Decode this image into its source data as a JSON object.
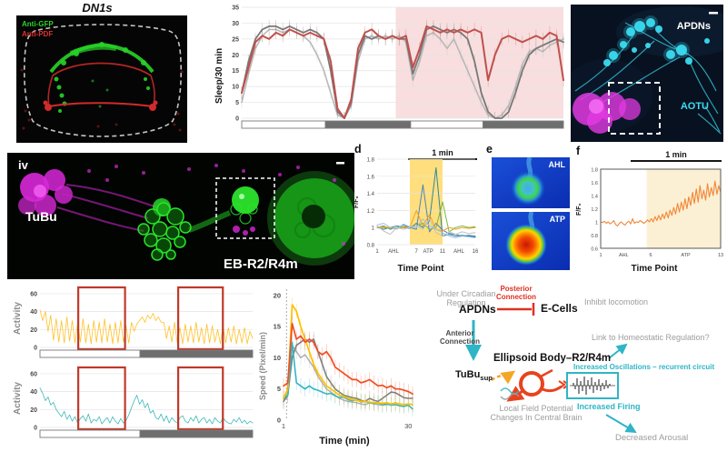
{
  "figure": {
    "background": "#ffffff"
  },
  "panels": {
    "dn1s": {
      "title": "DN1s",
      "label_green": "Anti-GFP",
      "label_red": "Anti-PDF",
      "colors": {
        "green": "#28d428",
        "red": "#d22a2a",
        "outline": "#cfcfcf",
        "bg": "#050505"
      }
    },
    "apdns_img": {
      "label_top": "APDNs",
      "label_bottom": "AOTU",
      "colors": {
        "cyan": "#3adcf2",
        "magenta": "#e23ae2",
        "bg": "#071120"
      }
    },
    "tubu_img": {
      "letter": "iv",
      "label_left": "TuBu",
      "label_bottom": "EB-R2/R4m",
      "colors": {
        "green": "#2be42b",
        "magenta": "#d928d9",
        "bg": "#020402"
      }
    },
    "panel_d": {
      "letter": "d",
      "scalebar": "1 min"
    },
    "panel_e": {
      "letter": "e",
      "img1_label": "AHL",
      "img2_label": "ATP"
    },
    "panel_f": {
      "letter": "f",
      "scalebar": "1 min"
    },
    "diagram": {
      "under_circadian": "Under Circadian Regulation",
      "apdns": "APDNs",
      "posterior": "Posterior Connection",
      "e_cells": "E-Cells",
      "inhibit": "Inhibit locomotion",
      "anterior": "Anterior Connection",
      "ellipsoid": "Ellipsoid Body–R2/R4m",
      "link": "Link to Homeostatic Regulation?",
      "tubu": "TuBu",
      "tubu_sub": "sup",
      "oscillations": "Increased Oscillations – recurrent circuit",
      "firing": "Increased Firing",
      "lfp1": "Local Field Potential",
      "lfp2": "Changes In Central Brain",
      "arousal": "Decreased Arousal",
      "accent_teal": "#2fb5c5",
      "accent_red": "#e03020",
      "accent_orange": "#f5a623"
    }
  },
  "chart_data": [
    {
      "id": "sleep",
      "type": "line",
      "title": "",
      "xlabel": "",
      "ylabel": "Sleep/30 min",
      "ylim": [
        0,
        35
      ],
      "yticks": [
        0,
        5,
        10,
        15,
        20,
        25,
        30,
        35
      ],
      "xlim": [
        0,
        47
      ],
      "grid": true,
      "tickfs": 7,
      "tickbold": true,
      "err": 2,
      "shaded": [
        {
          "x0": 22.5,
          "x1": 47,
          "color": "#f8dede",
          "opacity": 1
        }
      ],
      "pad": [
        24,
        6,
        4,
        14
      ],
      "photoperiod": [
        {
          "shade": "light",
          "frac": 0.26
        },
        {
          "shade": "dark",
          "frac": 0.265
        },
        {
          "shade": "light",
          "frac": 0.225
        },
        {
          "shade": "dark",
          "frac": 0.25
        }
      ],
      "series": [
        {
          "name": "control-light-gray",
          "color": "#b8b8b8",
          "lw": 1.6,
          "y": [
            5,
            14,
            22,
            26,
            28,
            28,
            27,
            28,
            27,
            26,
            24,
            20,
            15,
            8,
            1,
            0,
            4,
            18,
            25,
            26,
            25,
            26,
            25,
            26,
            24,
            12,
            18,
            26,
            27,
            25,
            22,
            25,
            20,
            15,
            10,
            5,
            1,
            0,
            1,
            4,
            10,
            17,
            21,
            22,
            21,
            23,
            24,
            25
          ]
        },
        {
          "name": "control-dark-gray",
          "color": "#787878",
          "lw": 1.8,
          "y": [
            8,
            18,
            25,
            28,
            29,
            29,
            28,
            29,
            28,
            27,
            28,
            27,
            25,
            15,
            2,
            0,
            5,
            20,
            26,
            25,
            26,
            25,
            26,
            25,
            25,
            14,
            20,
            28,
            29,
            28,
            27,
            28,
            27,
            25,
            18,
            8,
            2,
            0,
            0,
            2,
            8,
            15,
            20,
            22,
            23,
            24,
            25,
            24
          ]
        },
        {
          "name": "experimental-red",
          "color": "#c0504d",
          "lw": 2,
          "y": [
            8,
            16,
            24,
            26,
            25,
            27,
            26,
            28,
            27,
            26,
            27,
            26,
            25,
            18,
            3,
            0,
            6,
            22,
            27,
            28,
            26,
            25,
            26,
            25,
            26,
            16,
            22,
            29,
            28,
            27,
            28,
            27,
            28,
            27,
            28,
            27,
            12,
            20,
            25,
            26,
            25,
            24,
            25,
            26,
            25,
            27,
            26,
            12
          ]
        }
      ]
    },
    {
      "id": "dff_multi",
      "type": "line",
      "xlabel": "Time Point",
      "ylabel": "F/F₀",
      "ylim": [
        0.8,
        1.8
      ],
      "yticks": [
        0.8,
        1,
        1.2,
        1.4,
        1.6,
        1.8
      ],
      "xlim": [
        1,
        16
      ],
      "grid": true,
      "tickfs": 6,
      "lw": 1,
      "shaded": [
        {
          "x0": 6,
          "x1": 11,
          "color": "#ffd966",
          "opacity": 0.85
        }
      ],
      "pad": [
        15,
        4,
        3,
        14
      ],
      "xticklabels": [
        {
          "pos": 1,
          "t": "1"
        },
        {
          "pos": 3.5,
          "t": "AHL"
        },
        {
          "pos": 7,
          "t": "7"
        },
        {
          "pos": 8.8,
          "t": "ATP"
        },
        {
          "pos": 11,
          "t": "11"
        },
        {
          "pos": 13.5,
          "t": "AHL"
        },
        {
          "pos": 16,
          "t": "16"
        }
      ],
      "series": [
        {
          "name": "cell-1",
          "color": "#4f81bd",
          "y": [
            1.0,
            1.02,
            0.98,
            1.0,
            1.03,
            1.0,
            0.98,
            1.5,
            0.95,
            1.05,
            0.97,
            0.93,
            0.92,
            0.9,
            0.91,
            0.9
          ]
        },
        {
          "name": "cell-2",
          "color": "#31859c",
          "y": [
            1.0,
            0.98,
            1.0,
            1.02,
            1.0,
            0.99,
            1.05,
            1.0,
            1.08,
            1.7,
            0.9,
            0.92,
            0.9,
            0.91,
            0.9,
            0.89
          ]
        },
        {
          "name": "cell-3",
          "color": "#77b843",
          "y": [
            1.0,
            1.0,
            0.99,
            1.0,
            1.01,
            1.0,
            1.02,
            1.05,
            0.98,
            1.0,
            1.3,
            0.95,
            1.0,
            1.02,
            1.0,
            1.01
          ]
        },
        {
          "name": "cell-4",
          "color": "#f7a11a",
          "y": [
            1.0,
            1.01,
            1.0,
            0.99,
            1.0,
            1.0,
            1.2,
            1.02,
            1.15,
            0.98,
            0.96,
            1.0,
            0.98,
            1.0,
            0.99,
            1.0
          ]
        },
        {
          "name": "cell-5",
          "color": "#c0c0c0",
          "y": [
            1.02,
            0.96,
            0.92,
            1.0,
            0.98,
            1.0,
            1.02,
            0.98,
            1.1,
            0.94,
            0.9,
            0.95,
            0.92,
            0.95,
            0.93,
            0.94
          ]
        },
        {
          "name": "cell-6",
          "color": "#9dc3e6",
          "y": [
            1.03,
            1.05,
            1.0,
            0.98,
            1.04,
            1.01,
            1.0,
            1.1,
            1.02,
            0.98,
            0.94,
            0.9,
            0.88,
            0.9,
            0.89,
            0.88
          ]
        }
      ]
    },
    {
      "id": "dff_single",
      "type": "line",
      "xlabel": "Time Point",
      "ylabel": "F/F₀",
      "ylim": [
        0.6,
        1.8
      ],
      "yticks": [
        0.6,
        0.8,
        1,
        1.2,
        1.4,
        1.6,
        1.8
      ],
      "xlim": [
        1,
        13
      ],
      "grid": false,
      "boxed": true,
      "tickfs": 5.5,
      "shaded": [
        {
          "x0": 5.6,
          "x1": 13,
          "color": "#fcf0d4",
          "opacity": 1
        }
      ],
      "pad": [
        17,
        3,
        3,
        16
      ],
      "xticklabels": [
        {
          "pos": 1,
          "t": "1"
        },
        {
          "pos": 3.3,
          "t": "AHL"
        },
        {
          "pos": 6,
          "t": "6"
        },
        {
          "pos": 9.5,
          "t": "ATP"
        },
        {
          "pos": 13,
          "t": "13"
        }
      ],
      "series": [
        {
          "name": "gcamp-trace",
          "color": "#f0883a",
          "lw": 1.1,
          "y": [
            1.0,
            0.99,
            1.01,
            0.98,
            1.0,
            0.97,
            0.99,
            1.02,
            0.96,
            0.94,
            0.98,
            1.0,
            0.97,
            0.95,
            0.99,
            1.01,
            0.97,
            1.05,
            0.98,
            1.0,
            0.99,
            1.02,
            1.0,
            0.98,
            1.0,
            1.03,
            1.0,
            1.05,
            1.0,
            1.08,
            1.02,
            1.1,
            1.03,
            1.12,
            1.05,
            1.15,
            1.06,
            1.18,
            1.1,
            1.22,
            1.12,
            1.28,
            1.15,
            1.3,
            1.18,
            1.35,
            1.2,
            1.38,
            1.25,
            1.45,
            1.28,
            1.5,
            1.3,
            1.55,
            1.35,
            1.48,
            1.33,
            1.58,
            1.38,
            1.52,
            1.4,
            1.62,
            1.42,
            1.55,
            1.45
          ]
        }
      ]
    },
    {
      "id": "activity_top",
      "type": "line",
      "ylabel": "Activity",
      "ylim": [
        0,
        65
      ],
      "yticks": [
        0,
        20,
        40,
        60
      ],
      "xlim": [
        0,
        79
      ],
      "grid": true,
      "tickfs": 7,
      "tickbold": true,
      "pad": [
        20,
        6,
        6,
        4
      ],
      "photoperiod": [
        {
          "shade": "light",
          "frac": 0.47
        },
        {
          "shade": "dark",
          "frac": 0.53
        }
      ],
      "overlay_rects": [
        {
          "x0f": 0.18,
          "x1f": 0.4
        },
        {
          "x0f": 0.65,
          "x1f": 0.86
        }
      ],
      "series": [
        {
          "name": "fly-activity-orange",
          "color": "#ffc028",
          "lw": 0.8,
          "y": [
            42,
            30,
            40,
            18,
            36,
            8,
            32,
            6,
            30,
            5,
            34,
            7,
            30,
            5,
            28,
            6,
            32,
            5,
            26,
            4,
            30,
            6,
            28,
            5,
            32,
            6,
            26,
            4,
            28,
            5,
            30,
            6,
            24,
            5,
            28,
            18,
            26,
            30,
            34,
            28,
            36,
            32,
            38,
            30,
            34,
            28,
            28,
            10,
            24,
            6,
            28,
            5,
            22,
            4,
            26,
            6,
            24,
            5,
            28,
            6,
            22,
            4,
            26,
            5,
            24,
            6,
            20,
            4,
            24,
            5,
            22,
            6,
            24,
            4,
            20,
            5,
            22,
            4,
            18,
            10
          ]
        }
      ]
    },
    {
      "id": "activity_bottom",
      "type": "line",
      "ylabel": "Activity",
      "ylim": [
        0,
        65
      ],
      "yticks": [
        0,
        20,
        40,
        60
      ],
      "xlim": [
        0,
        79
      ],
      "grid": true,
      "tickfs": 7,
      "tickbold": true,
      "pad": [
        20,
        6,
        6,
        4
      ],
      "photoperiod": [
        {
          "shade": "light",
          "frac": 0.47
        },
        {
          "shade": "dark",
          "frac": 0.53
        }
      ],
      "overlay_rects": [
        {
          "x0f": 0.18,
          "x1f": 0.4
        },
        {
          "x0f": 0.65,
          "x1f": 0.86
        }
      ],
      "series": [
        {
          "name": "fly-activity-cyan",
          "color": "#3fb8b8",
          "lw": 0.8,
          "y": [
            44,
            38,
            30,
            34,
            25,
            28,
            20,
            16,
            12,
            18,
            9,
            14,
            7,
            12,
            5,
            10,
            13,
            7,
            15,
            5,
            9,
            7,
            12,
            4,
            8,
            11,
            5,
            12,
            7,
            4,
            10,
            5,
            8,
            14,
            22,
            30,
            36,
            26,
            31,
            22,
            27,
            16,
            19,
            11,
            9,
            15,
            7,
            13,
            5,
            11,
            7,
            5,
            11,
            13,
            7,
            5,
            11,
            7,
            13,
            5,
            9,
            11,
            5,
            9,
            4,
            11,
            7,
            5,
            11,
            7,
            5,
            4,
            9,
            6,
            11,
            5,
            8,
            4,
            7,
            5
          ]
        }
      ]
    },
    {
      "id": "speed",
      "type": "line",
      "xlabel": "Time (min)",
      "ylabel": "Speed (Pixel/min)",
      "ylim": [
        0,
        21
      ],
      "yticks": [
        0,
        5,
        10,
        15,
        20
      ],
      "xlim": [
        1,
        31
      ],
      "grid": false,
      "tickfs": 7.5,
      "tickbold": true,
      "err": 1.2,
      "dashline_x": 1.7,
      "pad": [
        16,
        6,
        6,
        16
      ],
      "xticklabels": [
        {
          "pos": 1,
          "t": "1"
        },
        {
          "pos": 30,
          "t": "30"
        }
      ],
      "series": [
        {
          "name": "speed-light-gray",
          "color": "#b0b0b0",
          "lw": 1.5,
          "y": [
            3,
            4.5,
            12,
            11,
            10,
            10.5,
            9.5,
            8.5,
            7,
            6,
            5,
            4.5,
            4,
            3.5,
            3.2,
            3,
            2.9,
            2.8,
            2.6,
            2.5,
            2.8,
            2.6,
            2.5,
            2.4,
            2.5,
            2.6,
            2.8,
            2.6,
            2.5,
            2.6,
            2.5
          ]
        },
        {
          "name": "speed-dark-gray",
          "color": "#7f7f7f",
          "lw": 1.6,
          "y": [
            3,
            4,
            10,
            12,
            12.5,
            13,
            12.5,
            13,
            11,
            9,
            7,
            6,
            5,
            4.5,
            4,
            3.8,
            3.6,
            3.5,
            3.2,
            3,
            3.5,
            3.2,
            3,
            3.5,
            4,
            4.5,
            4.4,
            4,
            3.6,
            3.5,
            3.5
          ]
        },
        {
          "name": "speed-cyan",
          "color": "#31b7c5",
          "lw": 1.6,
          "y": [
            3.5,
            4,
            12.5,
            6,
            5.5,
            5,
            5.5,
            5,
            4.8,
            4.5,
            4.2,
            4.3,
            3.9,
            3.6,
            3.7,
            3.3,
            3.1,
            3.3,
            2.9,
            3,
            2.8,
            2.7,
            2.8,
            2.5,
            2.6,
            2.4,
            2.5,
            2.3,
            2.2,
            2.4,
            1.8
          ]
        },
        {
          "name": "speed-orange",
          "color": "#ffc000",
          "lw": 1.7,
          "y": [
            3.5,
            5,
            18.5,
            17.5,
            15,
            13,
            11,
            9,
            7.5,
            6.5,
            5.5,
            5,
            4.5,
            4,
            3.8,
            3.5,
            3.3,
            3.2,
            3,
            3,
            2.9,
            2.8,
            2.8,
            2.7,
            2.8,
            2.6,
            2.7,
            2.6,
            2.5,
            2.6,
            2.5
          ]
        },
        {
          "name": "speed-red",
          "color": "#f04e23",
          "lw": 1.7,
          "y": [
            5.5,
            6,
            15.5,
            13,
            13.5,
            12.5,
            13,
            12.5,
            11,
            10.5,
            11,
            10,
            8.5,
            8,
            7.5,
            7,
            6.5,
            6.5,
            6,
            6.2,
            6.5,
            6,
            5.5,
            5.6,
            5.2,
            5.5,
            5,
            5,
            4.8,
            4.6,
            4.2
          ]
        }
      ]
    }
  ]
}
